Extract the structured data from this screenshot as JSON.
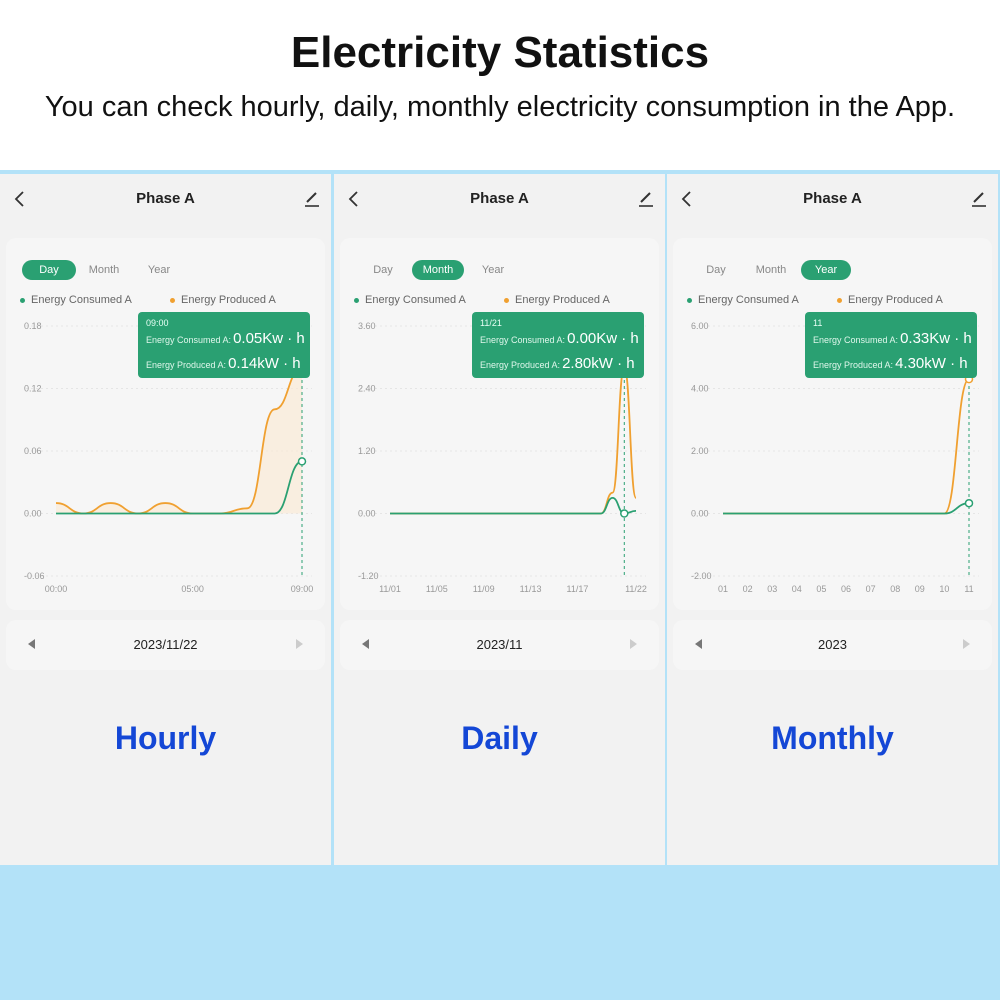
{
  "header": {
    "title": "Electricity Statistics",
    "subtitle": "You can check hourly, daily, monthly electricity consumption in the App."
  },
  "colors": {
    "consumed": "#2aa072",
    "produced": "#f0a030",
    "accent": "#2aa072",
    "caption": "#1447d6"
  },
  "icons": {
    "back": "chevron-left-icon",
    "edit": "pencil-icon",
    "prev": "triangle-left-icon",
    "next": "triangle-right-icon"
  },
  "panels": [
    {
      "title": "Phase A",
      "tabs": [
        "Day",
        "Month",
        "Year"
      ],
      "active_tab": 0,
      "legend": {
        "consumed": "Energy Consumed A",
        "produced": "Energy Produced A"
      },
      "tooltip": {
        "date": "09:00",
        "consumed_label": "Energy Consumed A:",
        "consumed_value": "0.05Kw · h",
        "produced_label": "Energy Produced A:",
        "produced_value": "0.14kW · h"
      },
      "date": "2023/11/22",
      "caption": "Hourly"
    },
    {
      "title": "Phase A",
      "tabs": [
        "Day",
        "Month",
        "Year"
      ],
      "active_tab": 1,
      "legend": {
        "consumed": "Energy Consumed A",
        "produced": "Energy Produced A"
      },
      "tooltip": {
        "date": "11/21",
        "consumed_label": "Energy Consumed A:",
        "consumed_value": "0.00Kw · h",
        "produced_label": "Energy Produced A:",
        "produced_value": "2.80kW · h"
      },
      "date": "2023/11",
      "caption": "Daily"
    },
    {
      "title": "Phase A",
      "tabs": [
        "Day",
        "Month",
        "Year"
      ],
      "active_tab": 2,
      "legend": {
        "consumed": "Energy Consumed A",
        "produced": "Energy Produced A"
      },
      "tooltip": {
        "date": "11",
        "consumed_label": "Energy Consumed A:",
        "consumed_value": "0.33Kw · h",
        "produced_label": "Energy Produced A:",
        "produced_value": "4.30kW · h"
      },
      "date": "2023",
      "caption": "Monthly"
    }
  ],
  "chart_data": [
    {
      "type": "line",
      "x": [
        "00:00",
        "01:00",
        "02:00",
        "03:00",
        "04:00",
        "05:00",
        "06:00",
        "07:00",
        "08:00",
        "09:00"
      ],
      "xticks": [
        "00:00",
        "05:00",
        "09:00"
      ],
      "yticks": [
        "0.18",
        "0.12",
        "0.06",
        "0.00",
        "-0.06"
      ],
      "ylim": [
        -0.06,
        0.18
      ],
      "series": [
        {
          "name": "Energy Consumed A",
          "values": [
            0,
            0,
            0,
            0,
            0,
            0,
            0,
            0,
            0,
            0.05
          ]
        },
        {
          "name": "Energy Produced A",
          "values": [
            0.01,
            0,
            0.01,
            0,
            0.01,
            0,
            0,
            0.005,
            0.1,
            0.14
          ]
        }
      ],
      "highlight_index": 9
    },
    {
      "type": "line",
      "x": [
        "11/01",
        "11/02",
        "11/03",
        "11/04",
        "11/05",
        "11/06",
        "11/07",
        "11/08",
        "11/09",
        "11/10",
        "11/11",
        "11/12",
        "11/13",
        "11/14",
        "11/15",
        "11/16",
        "11/17",
        "11/18",
        "11/19",
        "11/20",
        "11/21",
        "11/22"
      ],
      "xticks": [
        "11/01",
        "11/05",
        "11/09",
        "11/13",
        "11/17",
        "11/22"
      ],
      "yticks": [
        "3.60",
        "2.40",
        "1.20",
        "0.00",
        "-1.20"
      ],
      "ylim": [
        -1.2,
        3.6
      ],
      "series": [
        {
          "name": "Energy Consumed A",
          "values": [
            0,
            0,
            0,
            0,
            0,
            0,
            0,
            0,
            0,
            0,
            0,
            0,
            0,
            0,
            0,
            0,
            0,
            0,
            0,
            0.3,
            0,
            0.05
          ]
        },
        {
          "name": "Energy Produced A",
          "values": [
            0,
            0,
            0,
            0,
            0,
            0,
            0,
            0,
            0,
            0,
            0,
            0,
            0,
            0,
            0,
            0,
            0,
            0,
            0,
            0.4,
            2.8,
            0.3
          ]
        }
      ],
      "highlight_index": 20
    },
    {
      "type": "line",
      "x": [
        "01",
        "02",
        "03",
        "04",
        "05",
        "06",
        "07",
        "08",
        "09",
        "10",
        "11"
      ],
      "xticks": [
        "01",
        "02",
        "03",
        "04",
        "05",
        "06",
        "07",
        "08",
        "09",
        "10",
        "11"
      ],
      "yticks": [
        "6.00",
        "4.00",
        "2.00",
        "0.00",
        "-2.00"
      ],
      "ylim": [
        -2,
        6
      ],
      "series": [
        {
          "name": "Energy Consumed A",
          "values": [
            0,
            0,
            0,
            0,
            0,
            0,
            0,
            0,
            0,
            0,
            0.33
          ]
        },
        {
          "name": "Energy Produced A",
          "values": [
            0,
            0,
            0,
            0,
            0,
            0,
            0,
            0,
            0,
            0,
            4.3
          ]
        }
      ],
      "highlight_index": 10
    }
  ]
}
